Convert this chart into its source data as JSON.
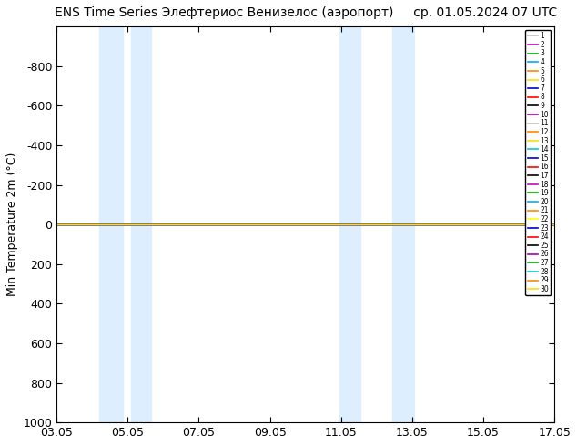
{
  "title": "ENS Time Series Элефтериос Венизелос (аэропорт)     ср. 01.05.2024 07 UTC",
  "ylabel": "Min Temperature 2m (°C)",
  "ylim": [
    -1000,
    1000
  ],
  "yticks": [
    -800,
    -600,
    -400,
    -200,
    0,
    200,
    400,
    600,
    800,
    1000
  ],
  "ytick_labels": [
    "-800",
    "-600",
    "-400",
    "-200",
    "0",
    "200",
    "400",
    "600",
    "800",
    "1000"
  ],
  "xtick_labels": [
    "03.05",
    "05.05",
    "07.05",
    "09.05",
    "11.05",
    "13.05",
    "15.05",
    "17.05"
  ],
  "xtick_positions": [
    3,
    5,
    7,
    9,
    11,
    13,
    15,
    17
  ],
  "shade_bands": [
    {
      "xmin": 4.2,
      "xmax": 4.85
    },
    {
      "xmin": 5.1,
      "xmax": 5.65
    },
    {
      "xmin": 10.95,
      "xmax": 11.55
    },
    {
      "xmin": 12.45,
      "xmax": 13.05
    }
  ],
  "shade_color": "#ddeeff",
  "n_members": 30,
  "line_value": 0.0,
  "member_colors": [
    "#c0c0c0",
    "#cc00cc",
    "#00aa00",
    "#00aaff",
    "#ff8800",
    "#ffdd00",
    "#0000cc",
    "#ff0000",
    "#000000",
    "#aa00aa",
    "#c0c0c0",
    "#ff8800",
    "#ffdd00",
    "#00cccc",
    "#0000cc",
    "#ff0000",
    "#000000",
    "#cc00cc",
    "#00aa00",
    "#00aaff",
    "#ff8800",
    "#ffff00",
    "#0000cc",
    "#ff0000",
    "#000000",
    "#aa00aa",
    "#00aa00",
    "#00cccc",
    "#ff8800",
    "#ffdd00"
  ],
  "background_color": "#ffffff",
  "xlim": [
    3,
    17
  ],
  "figwidth": 6.34,
  "figheight": 4.9,
  "dpi": 100
}
